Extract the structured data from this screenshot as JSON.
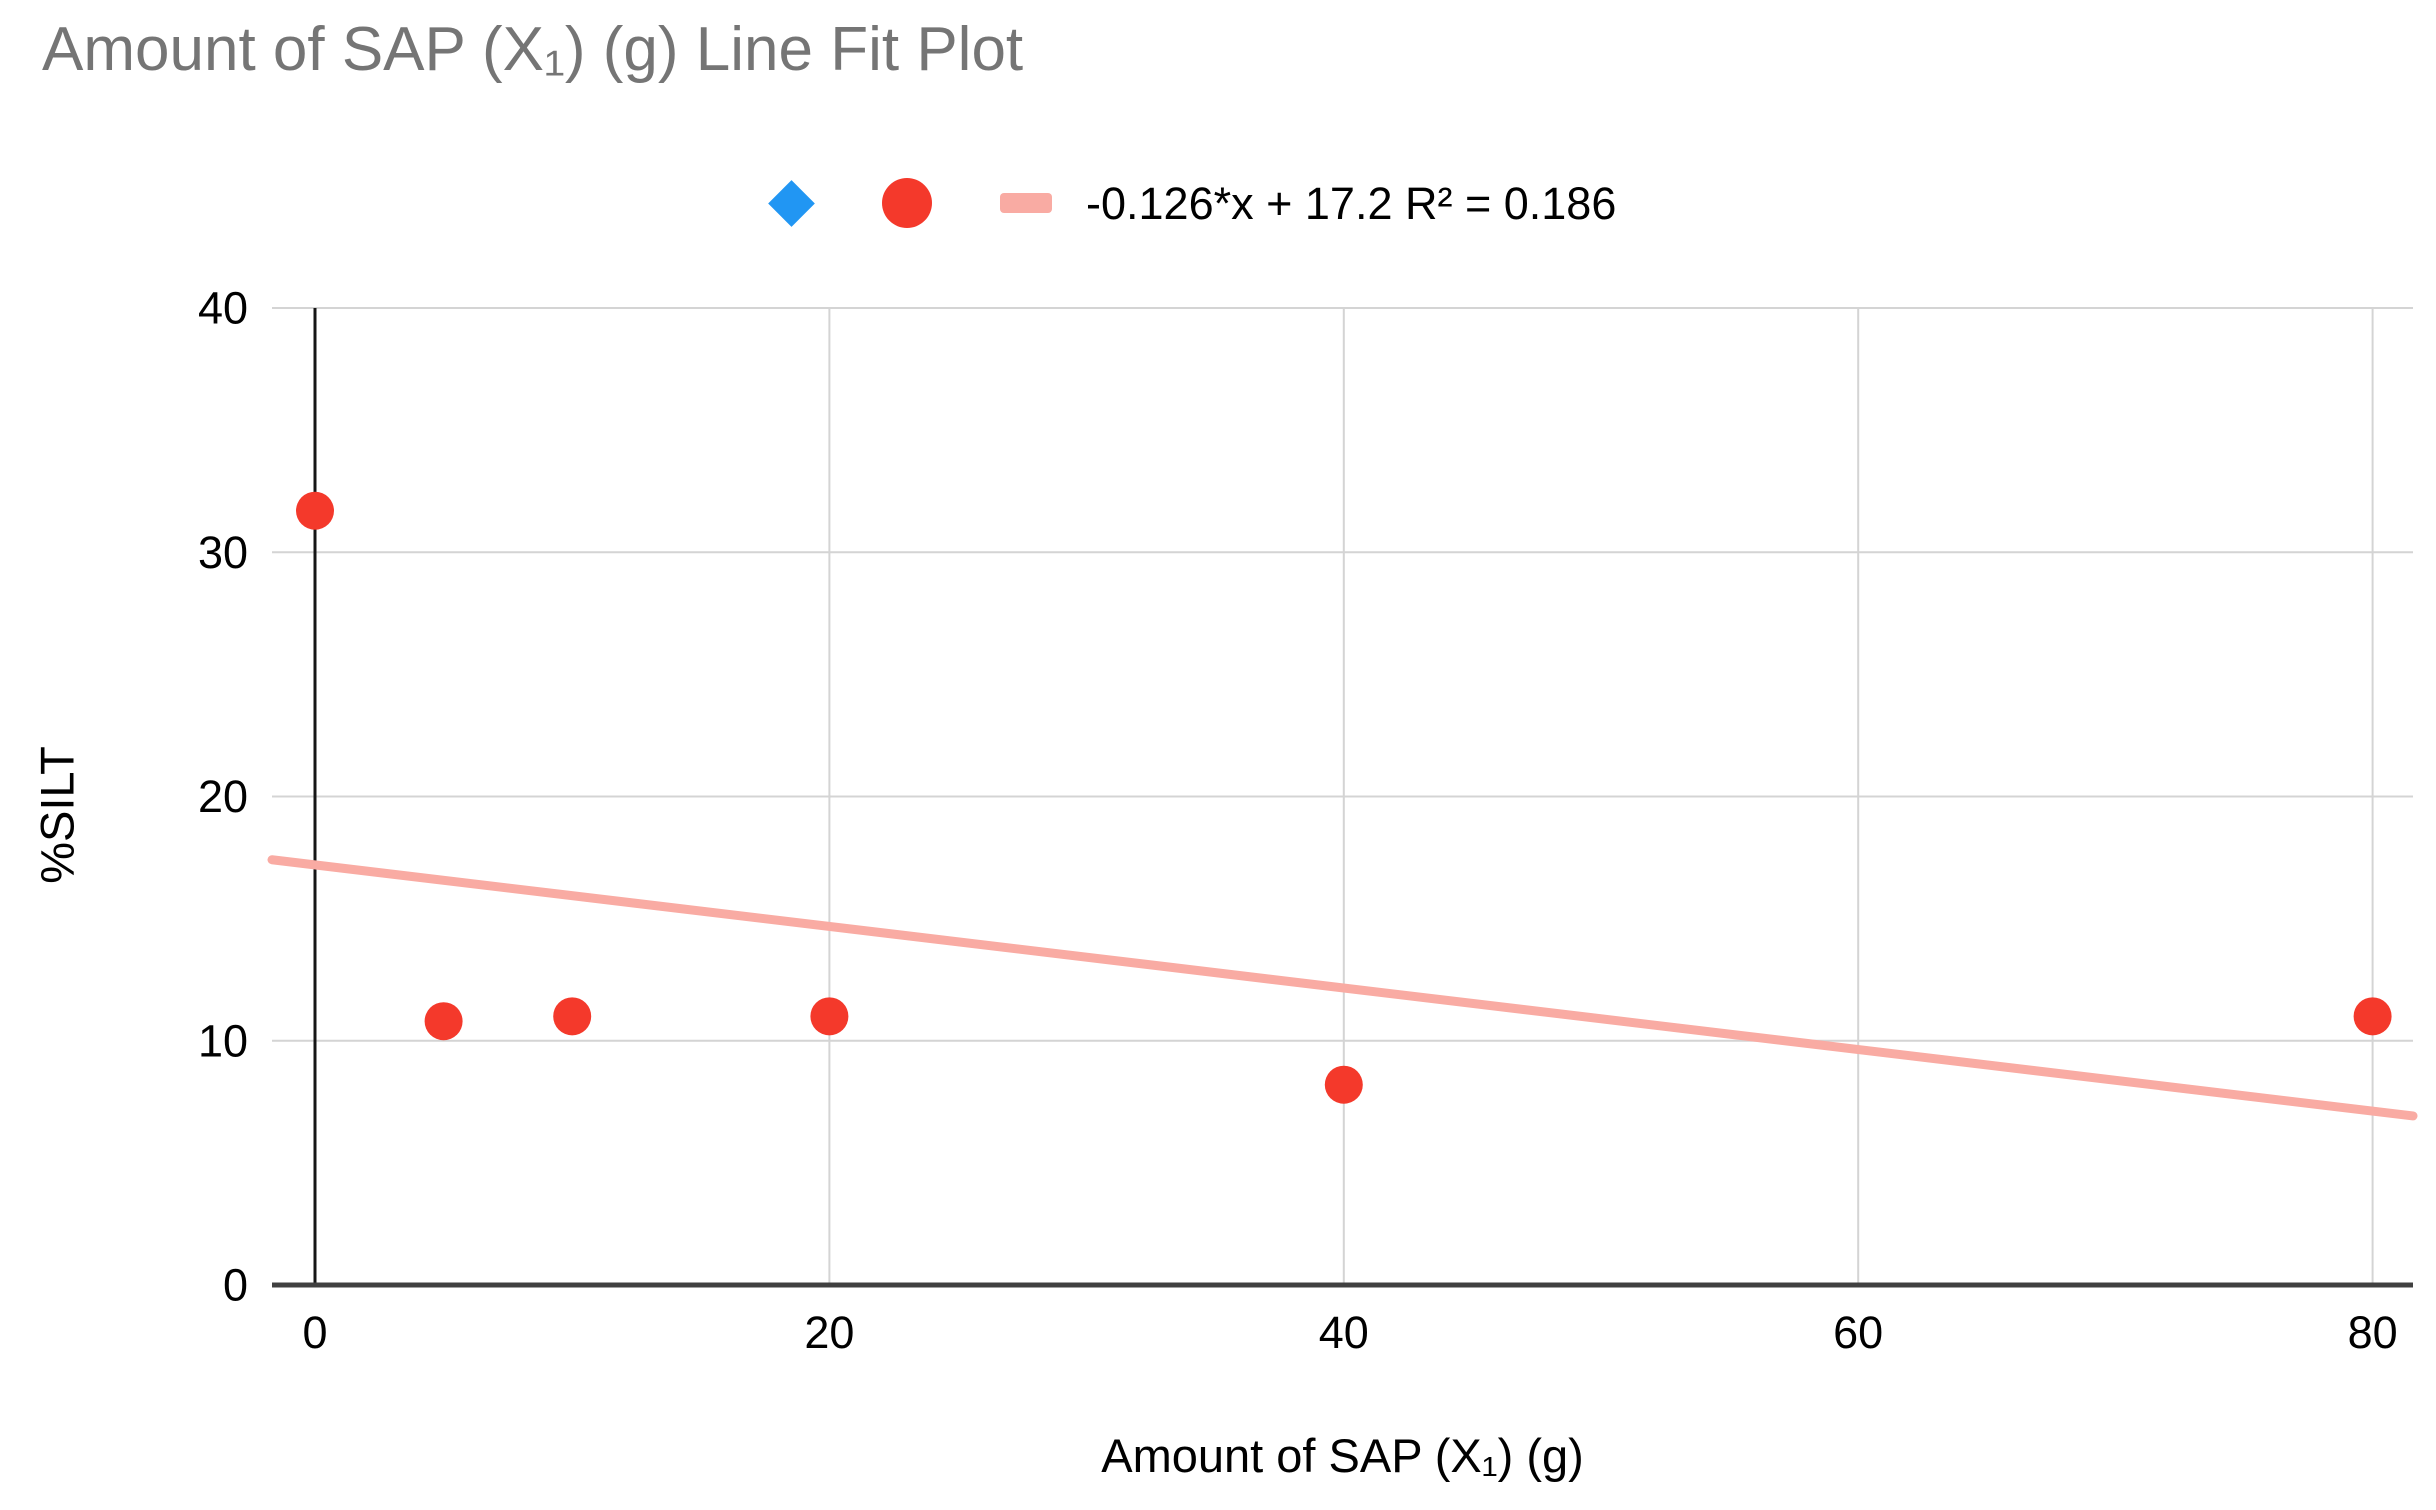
{
  "title": "Amount of SAP (X₁) (g) Line Fit Plot",
  "legend": {
    "trend_label": "-0.126*x + 17.2 R² = 0.186",
    "items": [
      {
        "icon": "blue-diamond",
        "color": "#2196f3"
      },
      {
        "icon": "red-circle",
        "color": "#f4392b"
      },
      {
        "icon": "pink-trendline-swatch",
        "color": "#f9aba3",
        "label": "-0.126*x + 17.2 R² = 0.186"
      }
    ]
  },
  "chart_data": {
    "type": "scatter",
    "title": "Amount of SAP (X₁) (g) Line Fit Plot",
    "xlabel": "Amount of SAP (X₁) (g)",
    "ylabel": "%SILT",
    "xlim": [
      -1.7,
      81.6
    ],
    "ylim": [
      0,
      40
    ],
    "x_ticks": [
      0,
      20,
      40,
      60,
      80
    ],
    "y_ticks": [
      0,
      10,
      20,
      30,
      40
    ],
    "grid": true,
    "legend_position": "top",
    "series": [
      {
        "name": "%SILT data points",
        "marker": "circle",
        "color": "#f4392b",
        "points": [
          [
            0,
            31.7
          ],
          [
            5,
            10.8
          ],
          [
            10,
            11
          ],
          [
            20,
            11
          ],
          [
            40,
            8.2
          ],
          [
            80,
            11
          ]
        ]
      }
    ],
    "trendline": {
      "slope": -0.126,
      "intercept": 17.2,
      "r2": 0.186,
      "equation_label": "-0.126*x + 17.2 R² = 0.186",
      "color": "#f9aba3"
    },
    "axis_colors": {
      "grid": "#d4d4d4",
      "x_axis": "#404040",
      "y_axis": "#161616",
      "tick_text": "#000000",
      "title_text": "#757575"
    }
  }
}
